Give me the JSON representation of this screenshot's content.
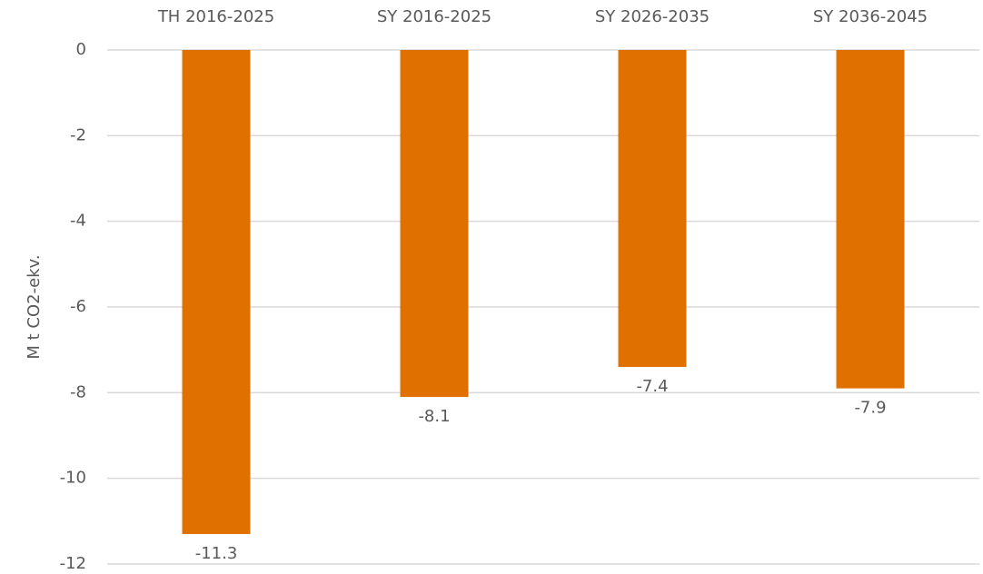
{
  "chart_data": {
    "type": "bar",
    "y_label": "M t CO2-ekv.",
    "categories": [
      "TH 2016-2025",
      "SY 2016-2025",
      "SY 2026-2035",
      "SY 2036-2045"
    ],
    "values": [
      -11.3,
      -8.1,
      -7.4,
      -7.9
    ],
    "color": "#e07000",
    "ylim": [
      -12,
      0
    ],
    "yticks": [
      0,
      -2,
      -4,
      -6,
      -8,
      -10,
      -12
    ],
    "grid": true
  }
}
